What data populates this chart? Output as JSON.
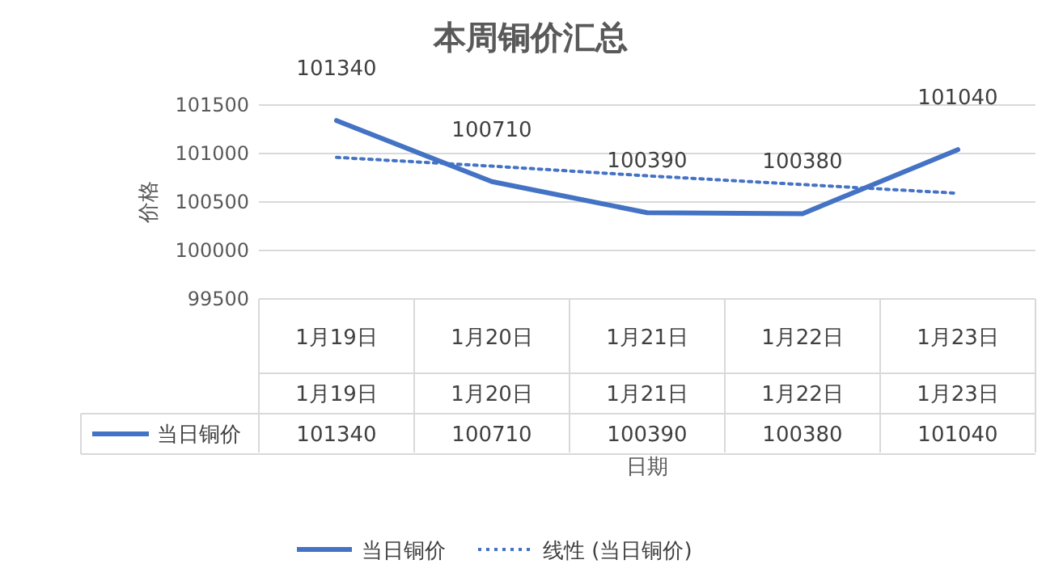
{
  "chart_data": {
    "type": "line",
    "title": "本周铜价汇总",
    "xlabel": "日期",
    "ylabel": "价格",
    "categories": [
      "1月19日",
      "1月20日",
      "1月21日",
      "1月22日",
      "1月23日"
    ],
    "series": [
      {
        "name": "当日铜价",
        "color": "#4472c4",
        "values": [
          101340,
          100710,
          100390,
          100380,
          101040
        ],
        "value_labels": [
          "101340",
          "100710",
          "100390",
          "100380",
          "101040"
        ],
        "line_style": "solid"
      },
      {
        "name": "线性 (当日铜价)",
        "color": "#4472c4",
        "values": [
          100960,
          100870,
          100770,
          100680,
          100590
        ],
        "line_style": "dotted"
      }
    ],
    "ylim": [
      99500,
      101500
    ],
    "yticks": [
      99500,
      100000,
      100500,
      101000,
      101500
    ],
    "grid": "y",
    "legend": "bottom"
  }
}
